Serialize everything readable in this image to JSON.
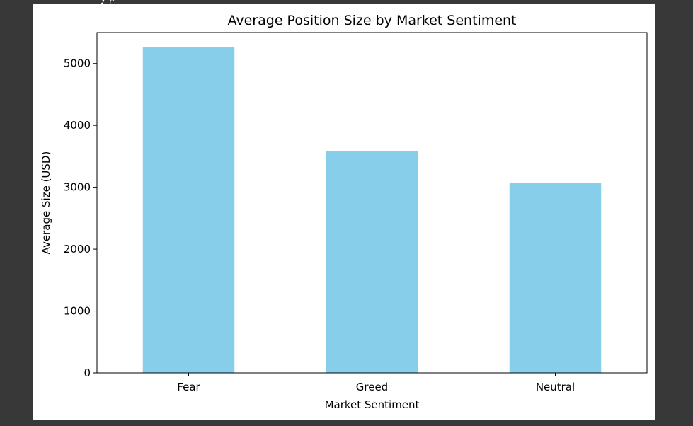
{
  "cell": {
    "cut_off_text": "y p"
  },
  "chart_data": {
    "type": "bar",
    "title": "Average Position Size by Market Sentiment",
    "xlabel": "Market Sentiment",
    "ylabel": "Average Size (USD)",
    "categories": [
      "Fear",
      "Greed",
      "Neutral"
    ],
    "values": [
      5265,
      3585,
      3065
    ],
    "ylim": [
      0,
      5500
    ],
    "yticks": [
      0,
      1000,
      2000,
      3000,
      4000,
      5000
    ],
    "ytick_labels": [
      "0",
      "1000",
      "2000",
      "3000",
      "4000",
      "5000"
    ],
    "bar_color": "#87CEEB",
    "grid": false,
    "legend": "none"
  }
}
